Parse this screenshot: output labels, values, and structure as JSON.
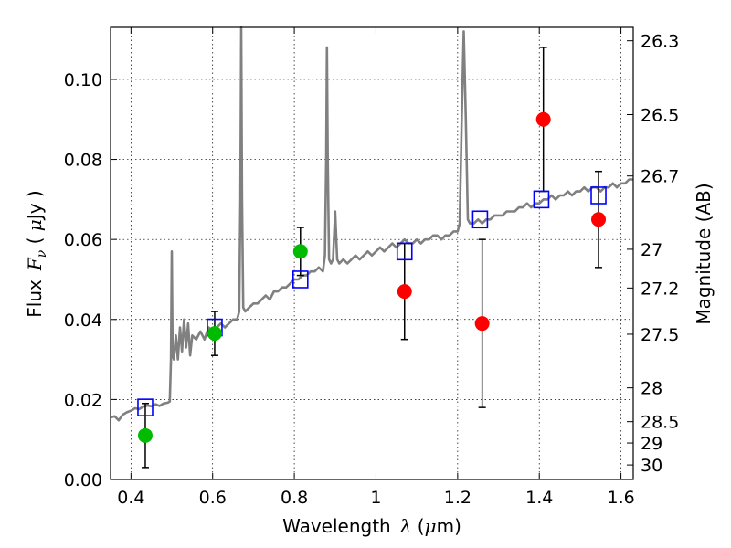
{
  "chart_data": {
    "type": "scatter",
    "title": "",
    "xlabel_prefix": "Wavelength",
    "xlabel_symbol": "λ",
    "xlabel_unit_open": " (",
    "xlabel_unit_mu": "μ",
    "xlabel_unit_rest": "m)",
    "ylabel_prefix": "Flux",
    "ylabel_symbol_F": "F",
    "ylabel_symbol_sub": "ν",
    "ylabel_unit_open": " ( ",
    "ylabel_unit_mu": "μ",
    "ylabel_unit_rest": "Jy )",
    "y2label": "Magnitude (AB)",
    "xlim": [
      0.35,
      1.63
    ],
    "ylim": [
      0.0,
      0.113
    ],
    "grid": true,
    "x_ticks": [
      {
        "value": 0.4,
        "label": "0.4"
      },
      {
        "value": 0.6,
        "label": "0.6"
      },
      {
        "value": 0.8,
        "label": "0.8"
      },
      {
        "value": 1.0,
        "label": "1"
      },
      {
        "value": 1.2,
        "label": "1.2"
      },
      {
        "value": 1.4,
        "label": "1.4"
      },
      {
        "value": 1.6,
        "label": "1.6"
      }
    ],
    "y_ticks": [
      {
        "value": 0.0,
        "label": "0.00"
      },
      {
        "value": 0.02,
        "label": "0.02"
      },
      {
        "value": 0.04,
        "label": "0.04"
      },
      {
        "value": 0.06,
        "label": "0.06"
      },
      {
        "value": 0.08,
        "label": "0.08"
      },
      {
        "value": 0.1,
        "label": "0.10"
      }
    ],
    "y2_ticks": [
      {
        "value": 26.3,
        "label": "26.3"
      },
      {
        "value": 26.5,
        "label": "26.5"
      },
      {
        "value": 26.7,
        "label": "26.7"
      },
      {
        "value": 27.0,
        "label": "27"
      },
      {
        "value": 27.2,
        "label": "27.2"
      },
      {
        "value": 27.5,
        "label": "27.5"
      },
      {
        "value": 28.0,
        "label": "28"
      },
      {
        "value": 28.5,
        "label": "28.5"
      },
      {
        "value": 29.0,
        "label": "29"
      },
      {
        "value": 30.0,
        "label": "30"
      }
    ],
    "model_spectrum": {
      "color": "#808080",
      "points": [
        [
          0.35,
          0.0155
        ],
        [
          0.36,
          0.0158
        ],
        [
          0.37,
          0.0148
        ],
        [
          0.38,
          0.0162
        ],
        [
          0.39,
          0.0168
        ],
        [
          0.4,
          0.0172
        ],
        [
          0.41,
          0.0178
        ],
        [
          0.42,
          0.0176
        ],
        [
          0.43,
          0.0182
        ],
        [
          0.44,
          0.0185
        ],
        [
          0.45,
          0.0183
        ],
        [
          0.46,
          0.0188
        ],
        [
          0.47,
          0.0184
        ],
        [
          0.48,
          0.019
        ],
        [
          0.49,
          0.0192
        ],
        [
          0.495,
          0.0195
        ],
        [
          0.498,
          0.03
        ],
        [
          0.5,
          0.057
        ],
        [
          0.502,
          0.031
        ],
        [
          0.505,
          0.03
        ],
        [
          0.51,
          0.036
        ],
        [
          0.515,
          0.03
        ],
        [
          0.52,
          0.038
        ],
        [
          0.525,
          0.032
        ],
        [
          0.53,
          0.04
        ],
        [
          0.535,
          0.033
        ],
        [
          0.54,
          0.039
        ],
        [
          0.545,
          0.031
        ],
        [
          0.55,
          0.036
        ],
        [
          0.56,
          0.035
        ],
        [
          0.57,
          0.037
        ],
        [
          0.58,
          0.035
        ],
        [
          0.59,
          0.038
        ],
        [
          0.6,
          0.037
        ],
        [
          0.61,
          0.038
        ],
        [
          0.62,
          0.039
        ],
        [
          0.63,
          0.038
        ],
        [
          0.64,
          0.039
        ],
        [
          0.65,
          0.04
        ],
        [
          0.66,
          0.04
        ],
        [
          0.665,
          0.042
        ],
        [
          0.668,
          0.07
        ],
        [
          0.67,
          0.113
        ],
        [
          0.672,
          0.07
        ],
        [
          0.675,
          0.043
        ],
        [
          0.68,
          0.042
        ],
        [
          0.69,
          0.043
        ],
        [
          0.7,
          0.044
        ],
        [
          0.71,
          0.044
        ],
        [
          0.72,
          0.045
        ],
        [
          0.73,
          0.046
        ],
        [
          0.74,
          0.045
        ],
        [
          0.75,
          0.047
        ],
        [
          0.76,
          0.047
        ],
        [
          0.77,
          0.048
        ],
        [
          0.78,
          0.048
        ],
        [
          0.79,
          0.049
        ],
        [
          0.8,
          0.05
        ],
        [
          0.81,
          0.05
        ],
        [
          0.82,
          0.051
        ],
        [
          0.83,
          0.051
        ],
        [
          0.84,
          0.052
        ],
        [
          0.85,
          0.052
        ],
        [
          0.86,
          0.053
        ],
        [
          0.87,
          0.052
        ],
        [
          0.875,
          0.056
        ],
        [
          0.878,
          0.08
        ],
        [
          0.88,
          0.108
        ],
        [
          0.882,
          0.08
        ],
        [
          0.885,
          0.055
        ],
        [
          0.89,
          0.054
        ],
        [
          0.895,
          0.055
        ],
        [
          0.9,
          0.067
        ],
        [
          0.905,
          0.055
        ],
        [
          0.91,
          0.054
        ],
        [
          0.92,
          0.055
        ],
        [
          0.93,
          0.054
        ],
        [
          0.94,
          0.055
        ],
        [
          0.95,
          0.056
        ],
        [
          0.96,
          0.055
        ],
        [
          0.97,
          0.056
        ],
        [
          0.98,
          0.057
        ],
        [
          0.99,
          0.056
        ],
        [
          1.0,
          0.057
        ],
        [
          1.01,
          0.058
        ],
        [
          1.02,
          0.057
        ],
        [
          1.03,
          0.058
        ],
        [
          1.04,
          0.059
        ],
        [
          1.05,
          0.058
        ],
        [
          1.06,
          0.059
        ],
        [
          1.07,
          0.06
        ],
        [
          1.08,
          0.059
        ],
        [
          1.09,
          0.059
        ],
        [
          1.1,
          0.06
        ],
        [
          1.11,
          0.059
        ],
        [
          1.12,
          0.06
        ],
        [
          1.13,
          0.06
        ],
        [
          1.14,
          0.061
        ],
        [
          1.15,
          0.061
        ],
        [
          1.16,
          0.06
        ],
        [
          1.17,
          0.061
        ],
        [
          1.18,
          0.061
        ],
        [
          1.19,
          0.062
        ],
        [
          1.2,
          0.062
        ],
        [
          1.205,
          0.064
        ],
        [
          1.21,
          0.09
        ],
        [
          1.215,
          0.112
        ],
        [
          1.22,
          0.09
        ],
        [
          1.225,
          0.065
        ],
        [
          1.23,
          0.064
        ],
        [
          1.24,
          0.064
        ],
        [
          1.25,
          0.065
        ],
        [
          1.26,
          0.064
        ],
        [
          1.27,
          0.065
        ],
        [
          1.28,
          0.065
        ],
        [
          1.29,
          0.066
        ],
        [
          1.3,
          0.066
        ],
        [
          1.31,
          0.066
        ],
        [
          1.32,
          0.067
        ],
        [
          1.33,
          0.067
        ],
        [
          1.34,
          0.067
        ],
        [
          1.35,
          0.068
        ],
        [
          1.36,
          0.068
        ],
        [
          1.37,
          0.069
        ],
        [
          1.38,
          0.068
        ],
        [
          1.39,
          0.069
        ],
        [
          1.4,
          0.069
        ],
        [
          1.41,
          0.07
        ],
        [
          1.42,
          0.07
        ],
        [
          1.43,
          0.071
        ],
        [
          1.44,
          0.07
        ],
        [
          1.45,
          0.071
        ],
        [
          1.46,
          0.071
        ],
        [
          1.47,
          0.072
        ],
        [
          1.48,
          0.071
        ],
        [
          1.49,
          0.072
        ],
        [
          1.5,
          0.072
        ],
        [
          1.51,
          0.073
        ],
        [
          1.52,
          0.072
        ],
        [
          1.53,
          0.073
        ],
        [
          1.54,
          0.073
        ],
        [
          1.55,
          0.072
        ],
        [
          1.56,
          0.073
        ],
        [
          1.57,
          0.073
        ],
        [
          1.58,
          0.074
        ],
        [
          1.59,
          0.073
        ],
        [
          1.6,
          0.074
        ],
        [
          1.61,
          0.074
        ],
        [
          1.62,
          0.075
        ],
        [
          1.63,
          0.075
        ]
      ]
    },
    "series": [
      {
        "marker": "open-square",
        "color": "#0000ff",
        "points": [
          {
            "x": 0.435,
            "y": 0.018
          },
          {
            "x": 0.605,
            "y": 0.038
          },
          {
            "x": 0.815,
            "y": 0.05
          },
          {
            "x": 1.07,
            "y": 0.057
          },
          {
            "x": 1.255,
            "y": 0.065
          },
          {
            "x": 1.405,
            "y": 0.07
          },
          {
            "x": 1.545,
            "y": 0.071
          }
        ]
      },
      {
        "marker": "filled-circle",
        "color": "#00bb00",
        "points": [
          {
            "x": 0.435,
            "y": 0.011,
            "ylo": 0.003,
            "yhi": 0.019
          },
          {
            "x": 0.605,
            "y": 0.0365,
            "ylo": 0.031,
            "yhi": 0.042
          },
          {
            "x": 0.815,
            "y": 0.057,
            "ylo": 0.051,
            "yhi": 0.063
          }
        ]
      },
      {
        "marker": "filled-circle",
        "color": "#ff0000",
        "points": [
          {
            "x": 1.07,
            "y": 0.047,
            "ylo": 0.035,
            "yhi": 0.059
          },
          {
            "x": 1.26,
            "y": 0.039,
            "ylo": 0.018,
            "yhi": 0.06
          },
          {
            "x": 1.41,
            "y": 0.09,
            "ylo": 0.072,
            "yhi": 0.108
          },
          {
            "x": 1.545,
            "y": 0.065,
            "ylo": 0.053,
            "yhi": 0.077
          }
        ]
      }
    ]
  }
}
